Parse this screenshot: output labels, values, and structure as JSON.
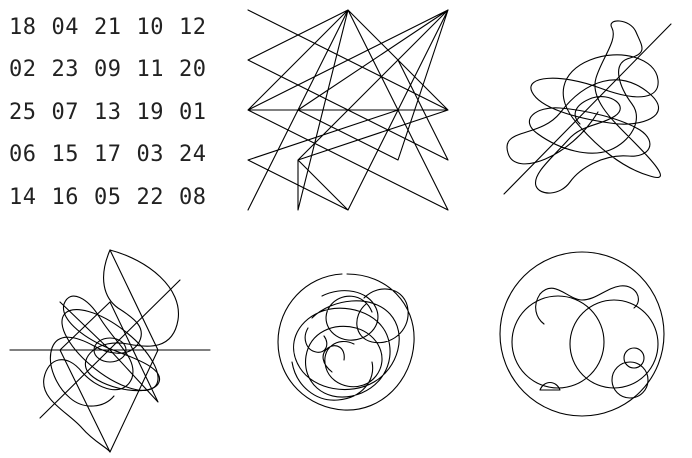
{
  "magic_square": {
    "rows": [
      [
        "18",
        "04",
        "21",
        "10",
        "12"
      ],
      [
        "02",
        "23",
        "09",
        "11",
        "20"
      ],
      [
        "25",
        "07",
        "13",
        "19",
        "01"
      ],
      [
        "06",
        "15",
        "17",
        "03",
        "24"
      ],
      [
        "14",
        "16",
        "05",
        "22",
        "08"
      ]
    ]
  }
}
